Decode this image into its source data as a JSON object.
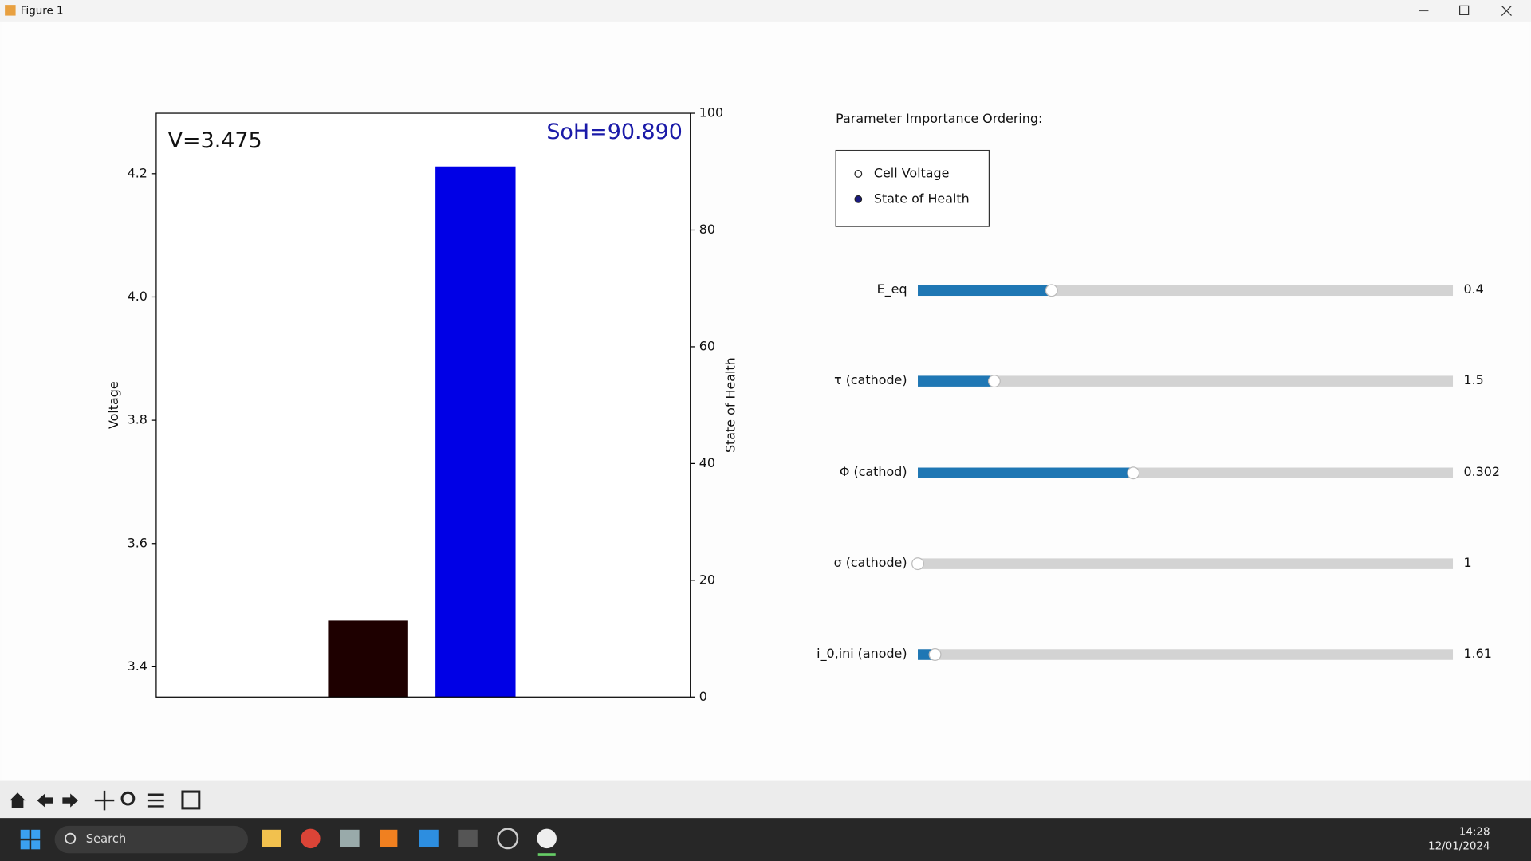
{
  "window": {
    "title": "Figure 1"
  },
  "chart_data": {
    "type": "bar",
    "ylabel": "Voltage",
    "y2label": "State of Health",
    "ylim": [
      3.351,
      4.298
    ],
    "yticks": [
      3.4,
      3.6,
      3.8,
      {
        "value": 4,
        "label": "4.0"
      },
      4.2
    ],
    "y2lim": [
      0,
      100
    ],
    "y2ticks": [
      0,
      20,
      40,
      60,
      80,
      100
    ],
    "series": [
      {
        "name": "Cell Voltage",
        "color": "#1e0000",
        "values": [
          3.475
        ]
      },
      {
        "name": "State of Health",
        "color": "#0000e6",
        "values": [
          90.89
        ],
        "axis": "y2"
      }
    ],
    "annotations": [
      "V=3.475",
      "SoH=90.890"
    ]
  },
  "radio": {
    "title": "Parameter Importance Ordering:",
    "selected": 1
  },
  "sliders": [
    {
      "label": "E_eq",
      "value": 0.4,
      "lim": [
        0,
        1.6
      ]
    },
    {
      "label": "τ (cathode)",
      "value": 1.5,
      "lim": [
        0.5,
        7.5
      ]
    },
    {
      "label": "Φ (cathod)",
      "value": 0.302,
      "lim": [
        0,
        0.75
      ]
    },
    {
      "label": "σ (cathode)",
      "value": 1,
      "lim": [
        1,
        10
      ]
    },
    {
      "label": "i_0,ini (anode)",
      "value": 1.61,
      "lim": [
        1,
        20
      ]
    }
  ],
  "taskbar": {
    "search": "Search",
    "time": "14:28",
    "date": "12/01/2024"
  }
}
